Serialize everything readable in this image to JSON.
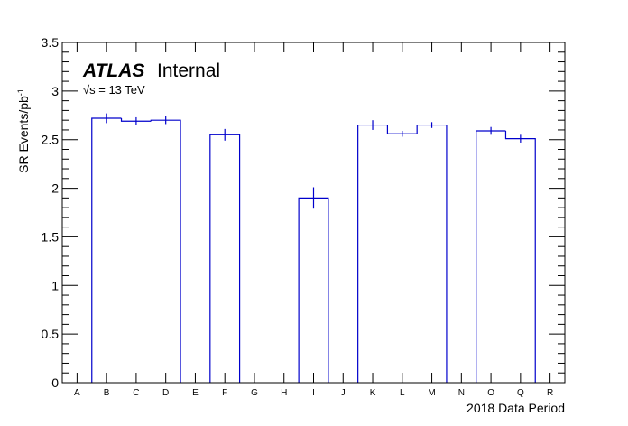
{
  "chart_data": {
    "type": "bar",
    "title": "",
    "experiment_label": "ATLAS",
    "status_label": "Internal",
    "energy_label": "√s = 13 TeV",
    "xlabel": "2018 Data Period",
    "ylabel": "SR Events/pb",
    "ylabel_superscript": "-1",
    "ylim": [
      0,
      3.5
    ],
    "yticks": [
      "0",
      "0.5",
      "1",
      "1.5",
      "2",
      "2.5",
      "3",
      "3.5"
    ],
    "categories": [
      "A",
      "B",
      "C",
      "D",
      "E",
      "F",
      "G",
      "H",
      "I",
      "J",
      "K",
      "L",
      "M",
      "N",
      "O",
      "Q",
      "R"
    ],
    "values": [
      0,
      2.72,
      2.69,
      2.7,
      0,
      2.55,
      0,
      0,
      1.9,
      0,
      2.65,
      2.56,
      2.65,
      0,
      2.59,
      2.51,
      0
    ],
    "errors": [
      0,
      0.05,
      0.04,
      0.04,
      0,
      0.06,
      0,
      0,
      0.11,
      0,
      0.05,
      0.03,
      0.03,
      0,
      0.04,
      0.04,
      0
    ],
    "colors": {
      "histogram": "#0000cc",
      "axis": "#000000"
    },
    "grid": false
  }
}
